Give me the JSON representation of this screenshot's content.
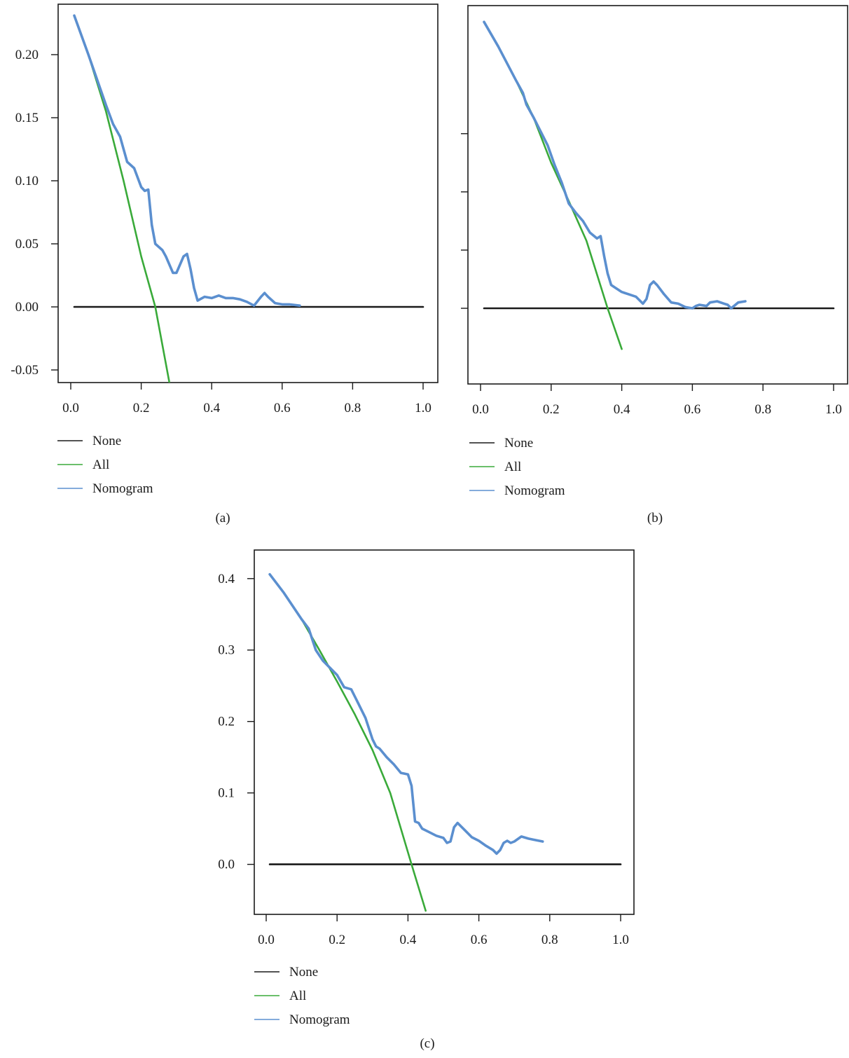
{
  "colors": {
    "none": "#1a1a1a",
    "all": "#3aaa3a",
    "nomogram": "#5b8fcf",
    "axis": "#1a1a1a"
  },
  "chart_data": [
    {
      "type": "line",
      "panel_label": "(a)",
      "xlim": [
        0.0,
        1.0
      ],
      "ylim": [
        -0.06,
        0.24
      ],
      "x_ticks": [
        "0.0",
        "0.2",
        "0.4",
        "0.6",
        "0.8",
        "1.0"
      ],
      "y_ticks": [
        "-0.05",
        "0.00",
        "0.05",
        "0.10",
        "0.15",
        "0.20"
      ],
      "y_tick_values": [
        -0.05,
        0.0,
        0.05,
        0.1,
        0.15,
        0.2
      ],
      "show_y_tick_labels": true,
      "legend": [
        "None",
        "All",
        "Nomogram"
      ],
      "legend_placement": "below",
      "grid": false,
      "series": [
        {
          "name": "None",
          "x": [
            0.01,
            1.0
          ],
          "y": [
            0.0,
            0.0
          ]
        },
        {
          "name": "All",
          "x": [
            0.01,
            0.05,
            0.1,
            0.15,
            0.2,
            0.24,
            0.28
          ],
          "y": [
            0.231,
            0.2,
            0.155,
            0.1,
            0.04,
            0.0,
            -0.06
          ]
        },
        {
          "name": "Nomogram",
          "x": [
            0.01,
            0.05,
            0.1,
            0.12,
            0.14,
            0.16,
            0.18,
            0.2,
            0.21,
            0.22,
            0.23,
            0.24,
            0.26,
            0.27,
            0.29,
            0.3,
            0.32,
            0.33,
            0.34,
            0.35,
            0.36,
            0.38,
            0.4,
            0.42,
            0.44,
            0.46,
            0.48,
            0.5,
            0.52,
            0.54,
            0.55,
            0.56,
            0.58,
            0.6,
            0.62,
            0.65
          ],
          "y": [
            0.231,
            0.2,
            0.16,
            0.145,
            0.135,
            0.115,
            0.11,
            0.095,
            0.092,
            0.093,
            0.065,
            0.05,
            0.045,
            0.04,
            0.027,
            0.027,
            0.04,
            0.042,
            0.03,
            0.015,
            0.005,
            0.008,
            0.007,
            0.009,
            0.007,
            0.007,
            0.006,
            0.004,
            0.001,
            0.008,
            0.011,
            0.008,
            0.003,
            0.002,
            0.002,
            0.001
          ]
        }
      ]
    },
    {
      "type": "line",
      "panel_label": "(b)",
      "xlim": [
        0.0,
        1.0
      ],
      "ylim": [
        -0.065,
        0.26
      ],
      "x_ticks": [
        "0.0",
        "0.2",
        "0.4",
        "0.6",
        "0.8",
        "1.0"
      ],
      "y_tick_values": [
        0.0,
        0.05,
        0.1,
        0.15
      ],
      "show_y_tick_labels": false,
      "legend": [
        "None",
        "All",
        "Nomogram"
      ],
      "legend_placement": "below",
      "grid": false,
      "series": [
        {
          "name": "None",
          "x": [
            0.01,
            1.0
          ],
          "y": [
            0.0,
            0.0
          ]
        },
        {
          "name": "All",
          "x": [
            0.01,
            0.05,
            0.1,
            0.15,
            0.2,
            0.25,
            0.3,
            0.36,
            0.4
          ],
          "y": [
            0.246,
            0.225,
            0.196,
            0.164,
            0.125,
            0.092,
            0.058,
            0.0,
            -0.035
          ]
        },
        {
          "name": "Nomogram",
          "x": [
            0.01,
            0.05,
            0.1,
            0.12,
            0.13,
            0.15,
            0.17,
            0.19,
            0.21,
            0.23,
            0.25,
            0.27,
            0.29,
            0.31,
            0.33,
            0.34,
            0.35,
            0.36,
            0.37,
            0.38,
            0.4,
            0.42,
            0.44,
            0.45,
            0.46,
            0.47,
            0.48,
            0.49,
            0.5,
            0.52,
            0.54,
            0.56,
            0.58,
            0.6,
            0.61,
            0.62,
            0.64,
            0.65,
            0.67,
            0.69,
            0.7,
            0.71,
            0.73,
            0.75
          ],
          "y": [
            0.246,
            0.225,
            0.196,
            0.185,
            0.175,
            0.164,
            0.152,
            0.14,
            0.123,
            0.108,
            0.09,
            0.082,
            0.075,
            0.065,
            0.06,
            0.062,
            0.045,
            0.03,
            0.02,
            0.018,
            0.014,
            0.012,
            0.01,
            0.007,
            0.004,
            0.008,
            0.02,
            0.023,
            0.02,
            0.012,
            0.005,
            0.004,
            0.001,
            0.0,
            0.002,
            0.003,
            0.002,
            0.005,
            0.006,
            0.004,
            0.003,
            0.0,
            0.005,
            0.006
          ]
        }
      ]
    },
    {
      "type": "line",
      "panel_label": "(c)",
      "xlim": [
        0.0,
        1.0
      ],
      "ylim": [
        -0.07,
        0.44
      ],
      "x_ticks": [
        "0.0",
        "0.2",
        "0.4",
        "0.6",
        "0.8",
        "1.0"
      ],
      "y_ticks": [
        "0.0",
        "0.1",
        "0.2",
        "0.3",
        "0.4"
      ],
      "y_tick_values": [
        0.0,
        0.1,
        0.2,
        0.3,
        0.4
      ],
      "show_y_tick_labels": true,
      "legend": [
        "None",
        "All",
        "Nomogram"
      ],
      "legend_placement": "below",
      "grid": false,
      "series": [
        {
          "name": "None",
          "x": [
            0.01,
            1.0
          ],
          "y": [
            0.0,
            0.0
          ]
        },
        {
          "name": "All",
          "x": [
            0.01,
            0.05,
            0.1,
            0.15,
            0.2,
            0.25,
            0.3,
            0.35,
            0.41,
            0.45
          ],
          "y": [
            0.406,
            0.38,
            0.343,
            0.3,
            0.256,
            0.21,
            0.16,
            0.1,
            0.0,
            -0.065
          ]
        },
        {
          "name": "Nomogram",
          "x": [
            0.01,
            0.05,
            0.1,
            0.12,
            0.14,
            0.16,
            0.18,
            0.2,
            0.22,
            0.24,
            0.25,
            0.26,
            0.28,
            0.3,
            0.31,
            0.32,
            0.34,
            0.36,
            0.38,
            0.39,
            0.4,
            0.41,
            0.42,
            0.43,
            0.44,
            0.46,
            0.48,
            0.5,
            0.51,
            0.52,
            0.53,
            0.54,
            0.56,
            0.58,
            0.6,
            0.62,
            0.64,
            0.65,
            0.66,
            0.67,
            0.68,
            0.69,
            0.7,
            0.72,
            0.74,
            0.76,
            0.78
          ],
          "y": [
            0.406,
            0.38,
            0.343,
            0.33,
            0.3,
            0.285,
            0.275,
            0.265,
            0.248,
            0.245,
            0.235,
            0.225,
            0.205,
            0.175,
            0.165,
            0.162,
            0.15,
            0.14,
            0.128,
            0.127,
            0.126,
            0.11,
            0.06,
            0.058,
            0.05,
            0.045,
            0.04,
            0.037,
            0.03,
            0.032,
            0.052,
            0.058,
            0.048,
            0.038,
            0.033,
            0.026,
            0.02,
            0.015,
            0.02,
            0.03,
            0.033,
            0.03,
            0.032,
            0.039,
            0.036,
            0.034,
            0.032
          ]
        }
      ]
    }
  ]
}
